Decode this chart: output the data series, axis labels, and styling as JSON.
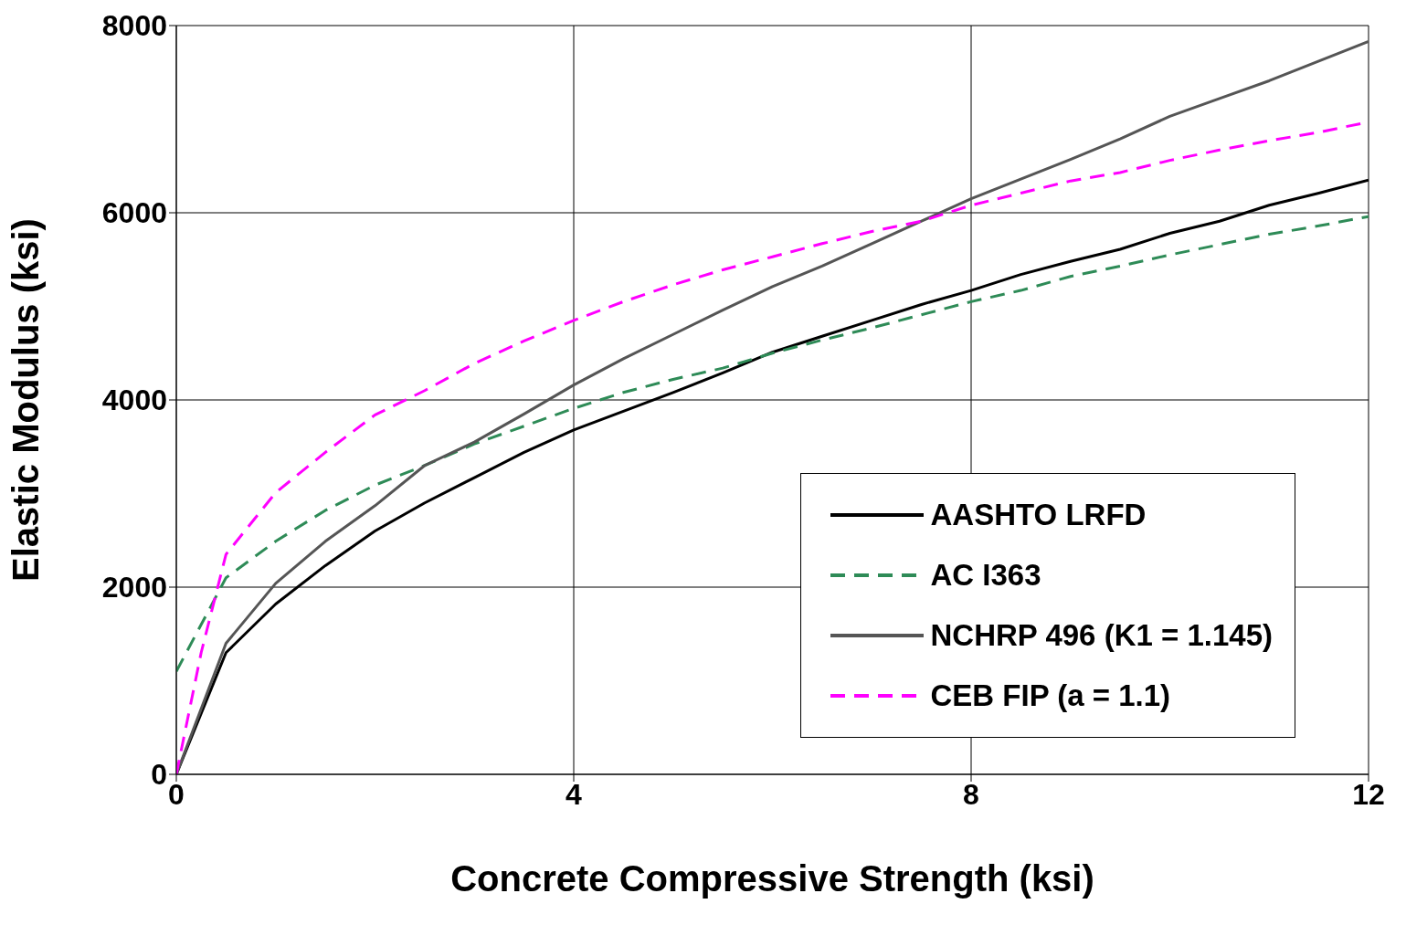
{
  "chart_data": {
    "type": "line",
    "xlabel": "Concrete Compressive Strength (ksi)",
    "ylabel": "Elastic Modulus (ksi)",
    "xlim": [
      0,
      12
    ],
    "xticks": [
      0,
      4,
      8,
      12
    ],
    "ylim": [
      0,
      8000
    ],
    "yticks": [
      0,
      2000,
      4000,
      6000,
      8000
    ],
    "grid": true,
    "legend": "bottom right",
    "marker": "none",
    "series": [
      {
        "name": "AASHTO LRFD",
        "color": "#000000",
        "line_style": "solid",
        "x": [
          0,
          0.5,
          1,
          1.5,
          2,
          2.5,
          3,
          3.5,
          4,
          4.5,
          5,
          5.5,
          6,
          6.5,
          7,
          7.5,
          8,
          8.5,
          9,
          9.5,
          10,
          10.5,
          11,
          11.5,
          12
        ],
        "values": [
          0,
          1300,
          1820,
          2230,
          2600,
          2900,
          3170,
          3440,
          3680,
          3880,
          4080,
          4290,
          4510,
          4680,
          4850,
          5020,
          5170,
          5340,
          5480,
          5610,
          5780,
          5910,
          6080,
          6210,
          6350
        ]
      },
      {
        "name": "AC I363",
        "color": "#2e8b57",
        "line_style": "dashed",
        "x": [
          0,
          0.5,
          1,
          1.5,
          2,
          2.5,
          3,
          3.5,
          4,
          4.5,
          5,
          5.5,
          6,
          6.5,
          7,
          7.5,
          8,
          8.5,
          9,
          9.5,
          10,
          10.5,
          11,
          11.5,
          12
        ],
        "values": [
          1100,
          2100,
          2490,
          2820,
          3090,
          3300,
          3530,
          3720,
          3910,
          4080,
          4220,
          4340,
          4500,
          4640,
          4770,
          4910,
          5050,
          5170,
          5320,
          5430,
          5550,
          5660,
          5770,
          5860,
          5960
        ]
      },
      {
        "name": "NCHRP 496 (K1 = 1.145)",
        "color": "#555555",
        "line_style": "solid",
        "x": [
          0,
          0.5,
          1,
          1.5,
          2,
          2.5,
          3,
          3.5,
          4,
          4.5,
          5,
          5.5,
          6,
          6.5,
          7,
          7.5,
          8,
          8.5,
          9,
          9.5,
          10,
          10.5,
          11,
          11.5,
          12
        ],
        "values": [
          0,
          1400,
          2040,
          2490,
          2870,
          3300,
          3550,
          3850,
          4160,
          4440,
          4700,
          4960,
          5210,
          5430,
          5670,
          5910,
          6150,
          6360,
          6570,
          6790,
          7030,
          7220,
          7410,
          7620,
          7830
        ]
      },
      {
        "name": "CEB FIP (a = 1.1)",
        "color": "#ff00ff",
        "line_style": "dashed",
        "x": [
          0,
          0.25,
          0.5,
          1,
          1.5,
          2,
          2.5,
          3,
          3.5,
          4,
          4.5,
          5,
          5.5,
          6,
          6.5,
          7,
          7.5,
          8,
          8.5,
          9,
          9.5,
          10,
          10.5,
          11,
          11.5,
          12
        ],
        "values": [
          0,
          1300,
          2350,
          3010,
          3440,
          3840,
          4100,
          4390,
          4630,
          4850,
          5050,
          5230,
          5390,
          5530,
          5670,
          5800,
          5910,
          6080,
          6210,
          6340,
          6430,
          6560,
          6670,
          6770,
          6860,
          6970
        ]
      }
    ]
  }
}
